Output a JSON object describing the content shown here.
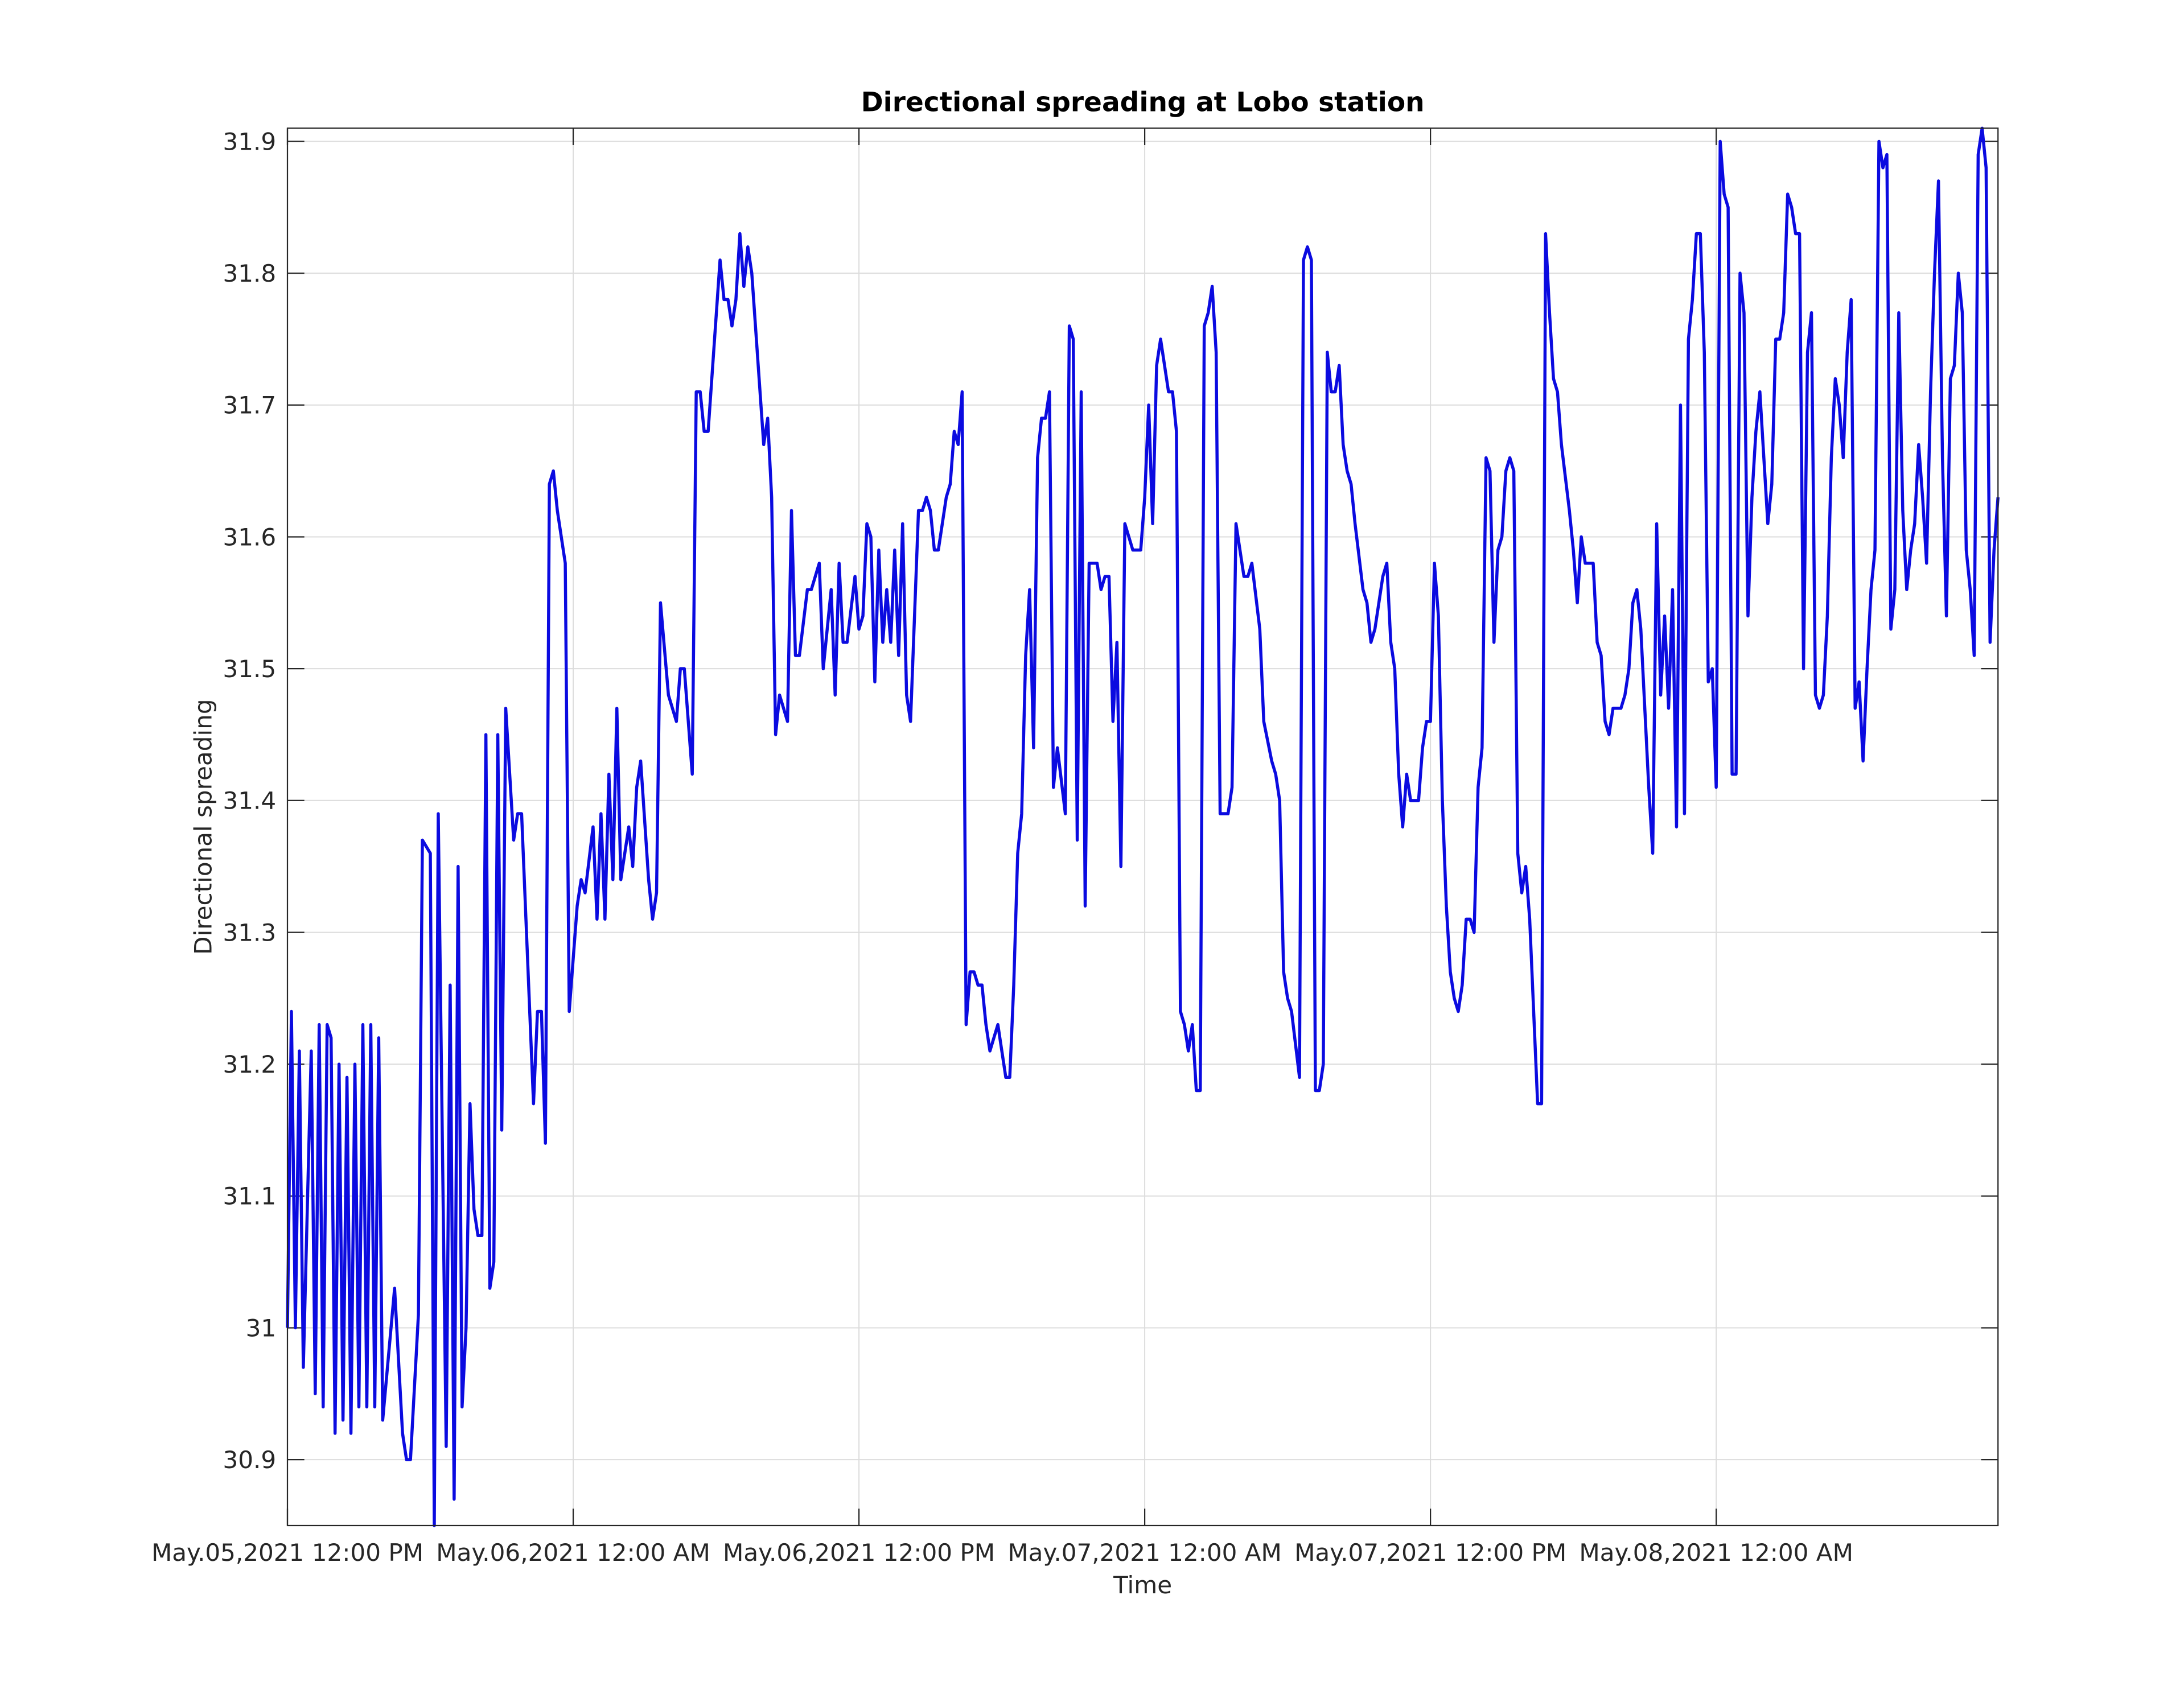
{
  "chart_data": {
    "type": "line",
    "title": "Directional spreading at Lobo station",
    "x_label": "Time",
    "y_label": "Directional spreading",
    "color": "#0b0be0",
    "grid": true,
    "xlim": [
      "2021-05-05 12:00",
      "2021-05-08 11:50"
    ],
    "xticks": [
      {
        "value": "2021-05-05 12:00",
        "label": "May.05,2021 12:00 PM"
      },
      {
        "value": "2021-05-06 00:00",
        "label": "May.06,2021 12:00 AM"
      },
      {
        "value": "2021-05-06 12:00",
        "label": "May.06,2021 12:00 PM"
      },
      {
        "value": "2021-05-07 00:00",
        "label": "May.07,2021 12:00 AM"
      },
      {
        "value": "2021-05-07 12:00",
        "label": "May.07,2021 12:00 PM"
      },
      {
        "value": "2021-05-08 00:00",
        "label": "May.08,2021 12:00 AM"
      }
    ],
    "ylim": [
      30.85,
      31.91
    ],
    "yticks": [
      30.9,
      31,
      31.1,
      31.2,
      31.3,
      31.4,
      31.5,
      31.6,
      31.7,
      31.8,
      31.9
    ],
    "x": [
      "2021-05-05 12:00",
      "2021-05-05 12:10",
      "2021-05-05 12:20",
      "2021-05-05 12:30",
      "2021-05-05 12:40",
      "2021-05-05 13:00",
      "2021-05-05 13:10",
      "2021-05-05 13:20",
      "2021-05-05 13:30",
      "2021-05-05 13:40",
      "2021-05-05 13:50",
      "2021-05-05 14:00",
      "2021-05-05 14:10",
      "2021-05-05 14:20",
      "2021-05-05 14:30",
      "2021-05-05 14:40",
      "2021-05-05 14:50",
      "2021-05-05 15:00",
      "2021-05-05 15:10",
      "2021-05-05 15:20",
      "2021-05-05 15:30",
      "2021-05-05 15:40",
      "2021-05-05 15:50",
      "2021-05-05 16:00",
      "2021-05-05 16:30",
      "2021-05-05 16:50",
      "2021-05-05 17:00",
      "2021-05-05 17:10",
      "2021-05-05 17:30",
      "2021-05-05 17:40",
      "2021-05-05 18:00",
      "2021-05-05 18:10",
      "2021-05-05 18:20",
      "2021-05-05 18:40",
      "2021-05-05 18:50",
      "2021-05-05 19:00",
      "2021-05-05 19:10",
      "2021-05-05 19:20",
      "2021-05-05 19:30",
      "2021-05-05 19:40",
      "2021-05-05 19:50",
      "2021-05-05 20:00",
      "2021-05-05 20:10",
      "2021-05-05 20:20",
      "2021-05-05 20:30",
      "2021-05-05 20:40",
      "2021-05-05 20:50",
      "2021-05-05 21:00",
      "2021-05-05 21:10",
      "2021-05-05 21:30",
      "2021-05-05 21:40",
      "2021-05-05 21:50",
      "2021-05-05 22:20",
      "2021-05-05 22:30",
      "2021-05-05 22:40",
      "2021-05-05 22:50",
      "2021-05-05 23:00",
      "2021-05-05 23:10",
      "2021-05-05 23:20",
      "2021-05-05 23:40",
      "2021-05-05 23:50",
      "2021-05-06 00:10",
      "2021-05-06 00:20",
      "2021-05-06 00:30",
      "2021-05-06 00:50",
      "2021-05-06 01:00",
      "2021-05-06 01:10",
      "2021-05-06 01:20",
      "2021-05-06 01:30",
      "2021-05-06 01:40",
      "2021-05-06 01:50",
      "2021-05-06 02:00",
      "2021-05-06 02:20",
      "2021-05-06 02:30",
      "2021-05-06 02:40",
      "2021-05-06 02:50",
      "2021-05-06 03:10",
      "2021-05-06 03:20",
      "2021-05-06 03:30",
      "2021-05-06 03:40",
      "2021-05-06 04:00",
      "2021-05-06 04:20",
      "2021-05-06 04:30",
      "2021-05-06 04:40",
      "2021-05-06 05:00",
      "2021-05-06 05:10",
      "2021-05-06 05:20",
      "2021-05-06 05:30",
      "2021-05-06 05:40",
      "2021-05-06 06:10",
      "2021-05-06 06:20",
      "2021-05-06 06:30",
      "2021-05-06 06:40",
      "2021-05-06 06:50",
      "2021-05-06 07:00",
      "2021-05-06 07:10",
      "2021-05-06 07:20",
      "2021-05-06 07:30",
      "2021-05-06 08:00",
      "2021-05-06 08:10",
      "2021-05-06 08:20",
      "2021-05-06 08:30",
      "2021-05-06 08:40",
      "2021-05-06 09:00",
      "2021-05-06 09:10",
      "2021-05-06 09:20",
      "2021-05-06 09:30",
      "2021-05-06 09:50",
      "2021-05-06 10:00",
      "2021-05-06 10:20",
      "2021-05-06 10:30",
      "2021-05-06 10:50",
      "2021-05-06 11:00",
      "2021-05-06 11:10",
      "2021-05-06 11:20",
      "2021-05-06 11:30",
      "2021-05-06 11:50",
      "2021-05-06 12:00",
      "2021-05-06 12:10",
      "2021-05-06 12:20",
      "2021-05-06 12:30",
      "2021-05-06 12:40",
      "2021-05-06 12:50",
      "2021-05-06 13:00",
      "2021-05-06 13:10",
      "2021-05-06 13:20",
      "2021-05-06 13:30",
      "2021-05-06 13:40",
      "2021-05-06 13:50",
      "2021-05-06 14:00",
      "2021-05-06 14:10",
      "2021-05-06 14:30",
      "2021-05-06 14:40",
      "2021-05-06 14:50",
      "2021-05-06 15:00",
      "2021-05-06 15:10",
      "2021-05-06 15:20",
      "2021-05-06 15:30",
      "2021-05-06 15:40",
      "2021-05-06 15:50",
      "2021-05-06 16:00",
      "2021-05-06 16:10",
      "2021-05-06 16:20",
      "2021-05-06 16:30",
      "2021-05-06 16:40",
      "2021-05-06 16:50",
      "2021-05-06 17:00",
      "2021-05-06 17:10",
      "2021-05-06 17:20",
      "2021-05-06 17:30",
      "2021-05-06 17:50",
      "2021-05-06 18:00",
      "2021-05-06 18:10",
      "2021-05-06 18:20",
      "2021-05-06 18:30",
      "2021-05-06 18:40",
      "2021-05-06 18:50",
      "2021-05-06 19:00",
      "2021-05-06 19:10",
      "2021-05-06 19:20",
      "2021-05-06 19:30",
      "2021-05-06 19:40",
      "2021-05-06 19:50",
      "2021-05-06 20:00",
      "2021-05-06 20:10",
      "2021-05-06 20:20",
      "2021-05-06 20:40",
      "2021-05-06 20:50",
      "2021-05-06 21:00",
      "2021-05-06 21:10",
      "2021-05-06 21:20",
      "2021-05-06 21:30",
      "2021-05-06 21:40",
      "2021-05-06 22:00",
      "2021-05-06 22:10",
      "2021-05-06 22:20",
      "2021-05-06 22:30",
      "2021-05-06 22:40",
      "2021-05-06 22:50",
      "2021-05-06 23:00",
      "2021-05-06 23:10",
      "2021-05-06 23:20",
      "2021-05-06 23:30",
      "2021-05-06 23:50",
      "2021-05-07 00:00",
      "2021-05-07 00:10",
      "2021-05-07 00:20",
      "2021-05-07 00:30",
      "2021-05-07 00:40",
      "2021-05-07 01:00",
      "2021-05-07 01:10",
      "2021-05-07 01:20",
      "2021-05-07 01:30",
      "2021-05-07 01:40",
      "2021-05-07 01:50",
      "2021-05-07 02:00",
      "2021-05-07 02:10",
      "2021-05-07 02:20",
      "2021-05-07 02:30",
      "2021-05-07 02:40",
      "2021-05-07 02:50",
      "2021-05-07 03:00",
      "2021-05-07 03:10",
      "2021-05-07 03:30",
      "2021-05-07 03:40",
      "2021-05-07 03:50",
      "2021-05-07 04:10",
      "2021-05-07 04:20",
      "2021-05-07 04:30",
      "2021-05-07 04:50",
      "2021-05-07 05:00",
      "2021-05-07 05:20",
      "2021-05-07 05:30",
      "2021-05-07 05:40",
      "2021-05-07 05:50",
      "2021-05-07 06:00",
      "2021-05-07 06:10",
      "2021-05-07 06:30",
      "2021-05-07 06:40",
      "2021-05-07 06:50",
      "2021-05-07 07:00",
      "2021-05-07 07:10",
      "2021-05-07 07:20",
      "2021-05-07 07:30",
      "2021-05-07 07:40",
      "2021-05-07 07:50",
      "2021-05-07 08:00",
      "2021-05-07 08:10",
      "2021-05-07 08:20",
      "2021-05-07 08:30",
      "2021-05-07 08:40",
      "2021-05-07 08:50",
      "2021-05-07 09:10",
      "2021-05-07 09:20",
      "2021-05-07 09:30",
      "2021-05-07 09:40",
      "2021-05-07 10:00",
      "2021-05-07 10:10",
      "2021-05-07 10:20",
      "2021-05-07 10:30",
      "2021-05-07 10:40",
      "2021-05-07 10:50",
      "2021-05-07 11:00",
      "2021-05-07 11:10",
      "2021-05-07 11:30",
      "2021-05-07 11:40",
      "2021-05-07 11:50",
      "2021-05-07 12:00",
      "2021-05-07 12:10",
      "2021-05-07 12:20",
      "2021-05-07 12:30",
      "2021-05-07 12:40",
      "2021-05-07 12:50",
      "2021-05-07 13:00",
      "2021-05-07 13:10",
      "2021-05-07 13:20",
      "2021-05-07 13:30",
      "2021-05-07 13:40",
      "2021-05-07 13:50",
      "2021-05-07 14:00",
      "2021-05-07 14:10",
      "2021-05-07 14:20",
      "2021-05-07 14:30",
      "2021-05-07 14:40",
      "2021-05-07 14:50",
      "2021-05-07 15:00",
      "2021-05-07 15:10",
      "2021-05-07 15:20",
      "2021-05-07 15:30",
      "2021-05-07 15:40",
      "2021-05-07 15:50",
      "2021-05-07 16:00",
      "2021-05-07 16:10",
      "2021-05-07 16:30",
      "2021-05-07 16:40",
      "2021-05-07 16:50",
      "2021-05-07 17:00",
      "2021-05-07 17:10",
      "2021-05-07 17:20",
      "2021-05-07 17:30",
      "2021-05-07 17:50",
      "2021-05-07 18:00",
      "2021-05-07 18:10",
      "2021-05-07 18:20",
      "2021-05-07 18:30",
      "2021-05-07 18:50",
      "2021-05-07 19:00",
      "2021-05-07 19:10",
      "2021-05-07 19:20",
      "2021-05-07 19:30",
      "2021-05-07 19:40",
      "2021-05-07 20:00",
      "2021-05-07 20:10",
      "2021-05-07 20:20",
      "2021-05-07 20:30",
      "2021-05-07 20:40",
      "2021-05-07 20:50",
      "2021-05-07 21:10",
      "2021-05-07 21:20",
      "2021-05-07 21:30",
      "2021-05-07 21:40",
      "2021-05-07 21:50",
      "2021-05-07 22:00",
      "2021-05-07 22:10",
      "2021-05-07 22:20",
      "2021-05-07 22:30",
      "2021-05-07 22:40",
      "2021-05-07 22:50",
      "2021-05-07 23:00",
      "2021-05-07 23:10",
      "2021-05-07 23:20",
      "2021-05-07 23:30",
      "2021-05-07 23:40",
      "2021-05-07 23:50",
      "2021-05-08 00:00",
      "2021-05-08 00:10",
      "2021-05-08 00:20",
      "2021-05-08 00:30",
      "2021-05-08 00:40",
      "2021-05-08 00:50",
      "2021-05-08 01:00",
      "2021-05-08 01:10",
      "2021-05-08 01:20",
      "2021-05-08 01:30",
      "2021-05-08 01:40",
      "2021-05-08 01:50",
      "2021-05-08 02:00",
      "2021-05-08 02:10",
      "2021-05-08 02:20",
      "2021-05-08 02:30",
      "2021-05-08 02:40",
      "2021-05-08 02:50",
      "2021-05-08 03:00",
      "2021-05-08 03:10",
      "2021-05-08 03:20",
      "2021-05-08 03:30",
      "2021-05-08 03:40",
      "2021-05-08 03:50",
      "2021-05-08 04:00",
      "2021-05-08 04:10",
      "2021-05-08 04:20",
      "2021-05-08 04:30",
      "2021-05-08 04:40",
      "2021-05-08 04:50",
      "2021-05-08 05:00",
      "2021-05-08 05:10",
      "2021-05-08 05:20",
      "2021-05-08 05:30",
      "2021-05-08 05:40",
      "2021-05-08 05:50",
      "2021-05-08 06:00",
      "2021-05-08 06:10",
      "2021-05-08 06:20",
      "2021-05-08 06:30",
      "2021-05-08 06:40",
      "2021-05-08 06:50",
      "2021-05-08 07:00",
      "2021-05-08 07:10",
      "2021-05-08 07:20",
      "2021-05-08 07:30",
      "2021-05-08 07:40",
      "2021-05-08 07:50",
      "2021-05-08 08:00",
      "2021-05-08 08:10",
      "2021-05-08 08:20",
      "2021-05-08 08:30",
      "2021-05-08 08:40",
      "2021-05-08 08:50",
      "2021-05-08 09:00",
      "2021-05-08 09:10",
      "2021-05-08 09:20",
      "2021-05-08 09:30",
      "2021-05-08 09:40",
      "2021-05-08 09:50",
      "2021-05-08 10:00",
      "2021-05-08 10:10",
      "2021-05-08 10:20",
      "2021-05-08 10:30",
      "2021-05-08 10:40",
      "2021-05-08 10:50",
      "2021-05-08 11:00",
      "2021-05-08 11:10",
      "2021-05-08 11:20",
      "2021-05-08 11:30",
      "2021-05-08 11:40",
      "2021-05-08 11:50"
    ],
    "values": [
      31.0,
      31.24,
      31.0,
      31.21,
      30.97,
      31.21,
      30.95,
      31.23,
      30.94,
      31.23,
      31.22,
      30.92,
      31.2,
      30.93,
      31.19,
      30.92,
      31.2,
      30.94,
      31.23,
      30.94,
      31.23,
      30.94,
      31.22,
      30.93,
      31.03,
      30.92,
      30.9,
      30.9,
      31.01,
      31.37,
      31.36,
      30.85,
      31.39,
      30.91,
      31.26,
      30.87,
      31.35,
      30.94,
      31.0,
      31.17,
      31.09,
      31.07,
      31.07,
      31.45,
      31.03,
      31.05,
      31.45,
      31.15,
      31.47,
      31.37,
      31.39,
      31.39,
      31.17,
      31.24,
      31.24,
      31.14,
      31.64,
      31.65,
      31.62,
      31.58,
      31.24,
      31.32,
      31.34,
      31.33,
      31.38,
      31.31,
      31.39,
      31.31,
      31.42,
      31.34,
      31.47,
      31.34,
      31.38,
      31.35,
      31.41,
      31.43,
      31.34,
      31.31,
      31.33,
      31.55,
      31.48,
      31.46,
      31.5,
      31.5,
      31.42,
      31.71,
      31.71,
      31.68,
      31.68,
      31.81,
      31.78,
      31.78,
      31.76,
      31.78,
      31.83,
      31.79,
      31.82,
      31.8,
      31.67,
      31.69,
      31.63,
      31.45,
      31.48,
      31.46,
      31.62,
      31.51,
      31.51,
      31.56,
      31.56,
      31.58,
      31.5,
      31.56,
      31.48,
      31.58,
      31.52,
      31.52,
      31.57,
      31.53,
      31.54,
      31.61,
      31.6,
      31.49,
      31.59,
      31.52,
      31.56,
      31.52,
      31.59,
      31.51,
      31.61,
      31.48,
      31.46,
      31.62,
      31.62,
      31.63,
      31.62,
      31.59,
      31.59,
      31.61,
      31.63,
      31.64,
      31.68,
      31.67,
      31.71,
      31.23,
      31.27,
      31.27,
      31.26,
      31.26,
      31.23,
      31.21,
      31.23,
      31.21,
      31.19,
      31.19,
      31.26,
      31.36,
      31.39,
      31.51,
      31.56,
      31.44,
      31.66,
      31.69,
      31.69,
      31.71,
      31.41,
      31.44,
      31.39,
      31.76,
      31.75,
      31.37,
      31.71,
      31.32,
      31.58,
      31.58,
      31.56,
      31.57,
      31.57,
      31.46,
      31.52,
      31.35,
      31.61,
      31.6,
      31.59,
      31.59,
      31.63,
      31.7,
      31.61,
      31.73,
      31.75,
      31.71,
      31.71,
      31.68,
      31.24,
      31.23,
      31.21,
      31.23,
      31.18,
      31.18,
      31.76,
      31.77,
      31.79,
      31.74,
      31.39,
      31.39,
      31.41,
      31.61,
      31.57,
      31.57,
      31.58,
      31.53,
      31.46,
      31.43,
      31.42,
      31.4,
      31.27,
      31.25,
      31.24,
      31.19,
      31.81,
      31.82,
      31.81,
      31.18,
      31.18,
      31.2,
      31.74,
      31.71,
      31.71,
      31.73,
      31.67,
      31.65,
      31.64,
      31.61,
      31.56,
      31.55,
      31.52,
      31.53,
      31.57,
      31.58,
      31.52,
      31.5,
      31.42,
      31.38,
      31.42,
      31.4,
      31.4,
      31.44,
      31.46,
      31.46,
      31.58,
      31.54,
      31.4,
      31.32,
      31.27,
      31.25,
      31.24,
      31.26,
      31.31,
      31.31,
      31.3,
      31.41,
      31.44,
      31.66,
      31.65,
      31.52,
      31.59,
      31.6,
      31.65,
      31.66,
      31.65,
      31.36,
      31.33,
      31.35,
      31.31,
      31.17,
      31.17,
      31.83,
      31.77,
      31.72,
      31.71,
      31.67,
      31.62,
      31.59,
      31.55,
      31.6,
      31.58,
      31.58,
      31.52,
      31.51,
      31.46,
      31.45,
      31.47,
      31.47,
      31.48,
      31.5,
      31.55,
      31.56,
      31.53,
      31.41,
      31.36,
      31.61,
      31.48,
      31.54,
      31.47,
      31.56,
      31.38,
      31.7,
      31.39,
      31.75,
      31.78,
      31.83,
      31.83,
      31.74,
      31.49,
      31.5,
      31.41,
      31.9,
      31.86,
      31.85,
      31.42,
      31.42,
      31.8,
      31.77,
      31.54,
      31.63,
      31.68,
      31.71,
      31.66,
      31.61,
      31.64,
      31.75,
      31.75,
      31.77,
      31.86,
      31.85,
      31.83,
      31.83,
      31.5,
      31.74,
      31.77,
      31.48,
      31.47,
      31.48,
      31.54,
      31.66,
      31.72,
      31.7,
      31.66,
      31.74,
      31.78,
      31.47,
      31.49,
      31.43,
      31.5,
      31.56,
      31.59,
      31.9,
      31.88,
      31.89,
      31.53,
      31.56,
      31.77,
      31.62,
      31.56,
      31.59,
      31.61,
      31.67,
      31.63,
      31.58,
      31.71,
      31.8,
      31.87,
      31.66,
      31.54,
      31.72,
      31.73,
      31.8,
      31.77,
      31.59,
      31.56,
      31.51,
      31.89,
      31.91,
      31.88,
      31.52,
      31.59,
      31.63
    ]
  }
}
